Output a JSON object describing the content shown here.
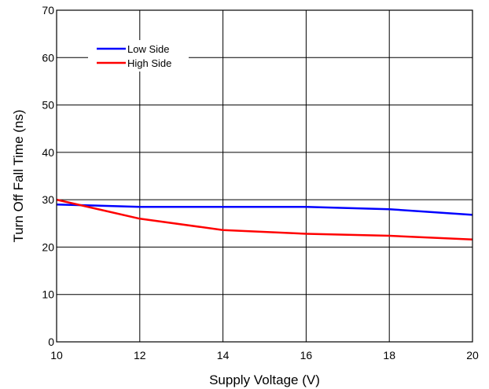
{
  "chart_data": {
    "type": "line",
    "title": "",
    "xlabel": "Supply Voltage (V)",
    "ylabel": "Turn Off Fall Time (ns)",
    "xlim": [
      10,
      20
    ],
    "ylim": [
      0,
      70
    ],
    "xticks": [
      10,
      12,
      14,
      16,
      18,
      20
    ],
    "yticks": [
      0,
      10,
      20,
      30,
      40,
      50,
      60,
      70
    ],
    "grid": true,
    "legend_position": "top-left",
    "series": [
      {
        "name": "Low Side",
        "color": "#0000ff",
        "x": [
          10,
          12,
          14,
          16,
          18,
          20
        ],
        "y": [
          29.0,
          28.5,
          28.5,
          28.5,
          28.0,
          26.8
        ]
      },
      {
        "name": "High Side",
        "color": "#ff0000",
        "x": [
          10,
          12,
          14,
          16,
          18,
          20
        ],
        "y": [
          30.0,
          26.0,
          23.6,
          22.8,
          22.4,
          21.6
        ]
      }
    ]
  }
}
